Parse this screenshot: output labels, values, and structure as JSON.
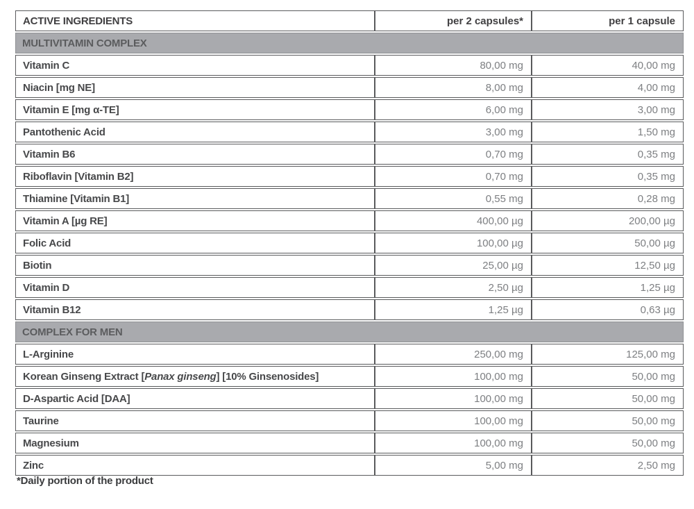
{
  "table": {
    "header": {
      "col1": "ACTIVE INGREDIENTS",
      "col2": "per 2 capsules*",
      "col3": "per 1 capsule"
    },
    "sections": [
      {
        "title": "MULTIVITAMIN COMPLEX",
        "rows": [
          {
            "name": "Vitamin C",
            "per2": "80,00 mg",
            "per1": "40,00 mg"
          },
          {
            "name": "Niacin [mg NE]",
            "per2": "8,00 mg",
            "per1": "4,00 mg"
          },
          {
            "name": "Vitamin E [mg α-TE]",
            "per2": "6,00 mg",
            "per1": "3,00 mg"
          },
          {
            "name": "Pantothenic Acid",
            "per2": "3,00 mg",
            "per1": "1,50 mg"
          },
          {
            "name": "Vitamin B6",
            "per2": "0,70 mg",
            "per1": "0,35 mg"
          },
          {
            "name": "Riboflavin [Vitamin B2]",
            "per2": "0,70 mg",
            "per1": "0,35 mg"
          },
          {
            "name": "Thiamine [Vitamin B1]",
            "per2": "0,55 mg",
            "per1": "0,28 mg"
          },
          {
            "name": "Vitamin A [µg RE]",
            "per2": "400,00 µg",
            "per1": "200,00 µg"
          },
          {
            "name": "Folic Acid",
            "per2": "100,00 µg",
            "per1": "50,00 µg"
          },
          {
            "name": "Biotin",
            "per2": "25,00 µg",
            "per1": "12,50 µg"
          },
          {
            "name": "Vitamin D",
            "per2": "2,50 µg",
            "per1": "1,25 µg"
          },
          {
            "name": "Vitamin B12",
            "per2": "1,25 µg",
            "per1": "0,63 µg"
          }
        ]
      },
      {
        "title": "COMPLEX FOR MEN",
        "rows": [
          {
            "name": "L-Arginine",
            "per2": "250,00 mg",
            "per1": "125,00 mg"
          },
          {
            "name_pre": "Korean Ginseng Extract [",
            "name_italic": "Panax ginseng",
            "name_post": "] [10% Ginsenosides]",
            "per2": "100,00 mg",
            "per1": "50,00 mg"
          },
          {
            "name": "D-Aspartic Acid [DAA]",
            "per2": "100,00 mg",
            "per1": "50,00 mg"
          },
          {
            "name": "Taurine",
            "per2": "100,00 mg",
            "per1": "50,00 mg"
          },
          {
            "name": "Magnesium",
            "per2": "100,00 mg",
            "per1": "50,00 mg"
          },
          {
            "name": "Zinc",
            "per2": "5,00 mg",
            "per1": "2,50 mg"
          }
        ]
      }
    ],
    "footnote": "*Daily portion of the product"
  },
  "colors": {
    "border": "#595a5c",
    "section_band_bg": "#a9aaae",
    "section_band_text": "#5b5c5e",
    "label_text": "#47484a",
    "value_text": "#7d7f82"
  }
}
